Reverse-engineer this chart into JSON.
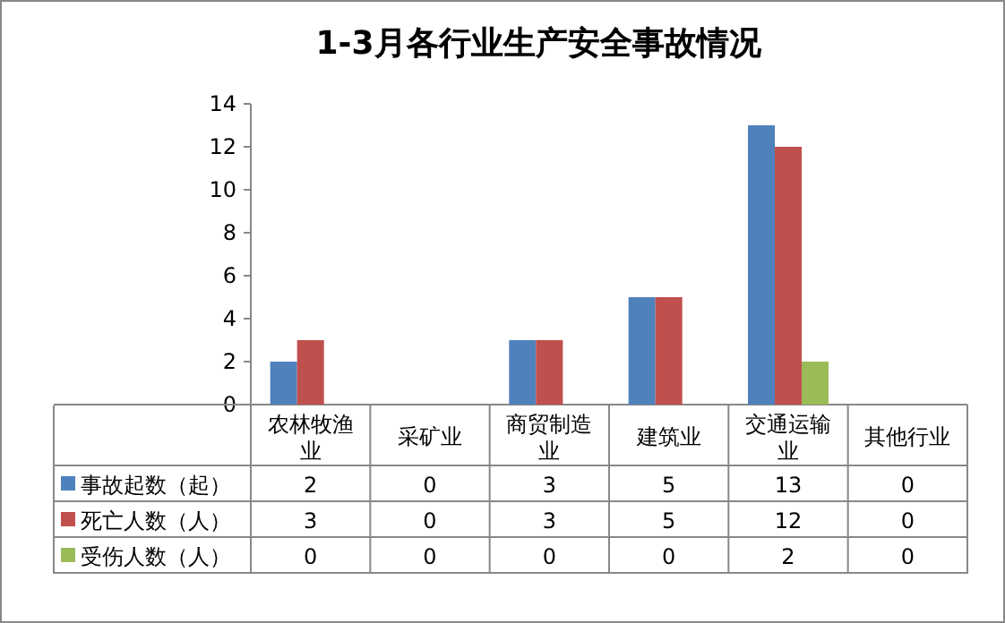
{
  "chart_data": {
    "type": "bar",
    "title": "1-3月各行业生产安全事故情况",
    "categories": [
      "农林牧渔业",
      "采矿业",
      "商贸制造业",
      "建筑业",
      "交通运输业",
      "其他行业"
    ],
    "series": [
      {
        "name": "事故起数（起）",
        "color": "#4f81bd",
        "values": [
          2,
          0,
          3,
          5,
          13,
          0
        ]
      },
      {
        "name": "死亡人数（人）",
        "color": "#c0504d",
        "values": [
          3,
          0,
          3,
          5,
          12,
          0
        ]
      },
      {
        "name": "受伤人数（人）",
        "color": "#9bbb59",
        "values": [
          0,
          0,
          0,
          0,
          2,
          0
        ]
      }
    ],
    "ylim": [
      0,
      14
    ],
    "yticks": [
      0,
      2,
      4,
      6,
      8,
      10,
      12,
      14
    ],
    "grid": false,
    "legend": "bottom",
    "data_labels": true
  }
}
